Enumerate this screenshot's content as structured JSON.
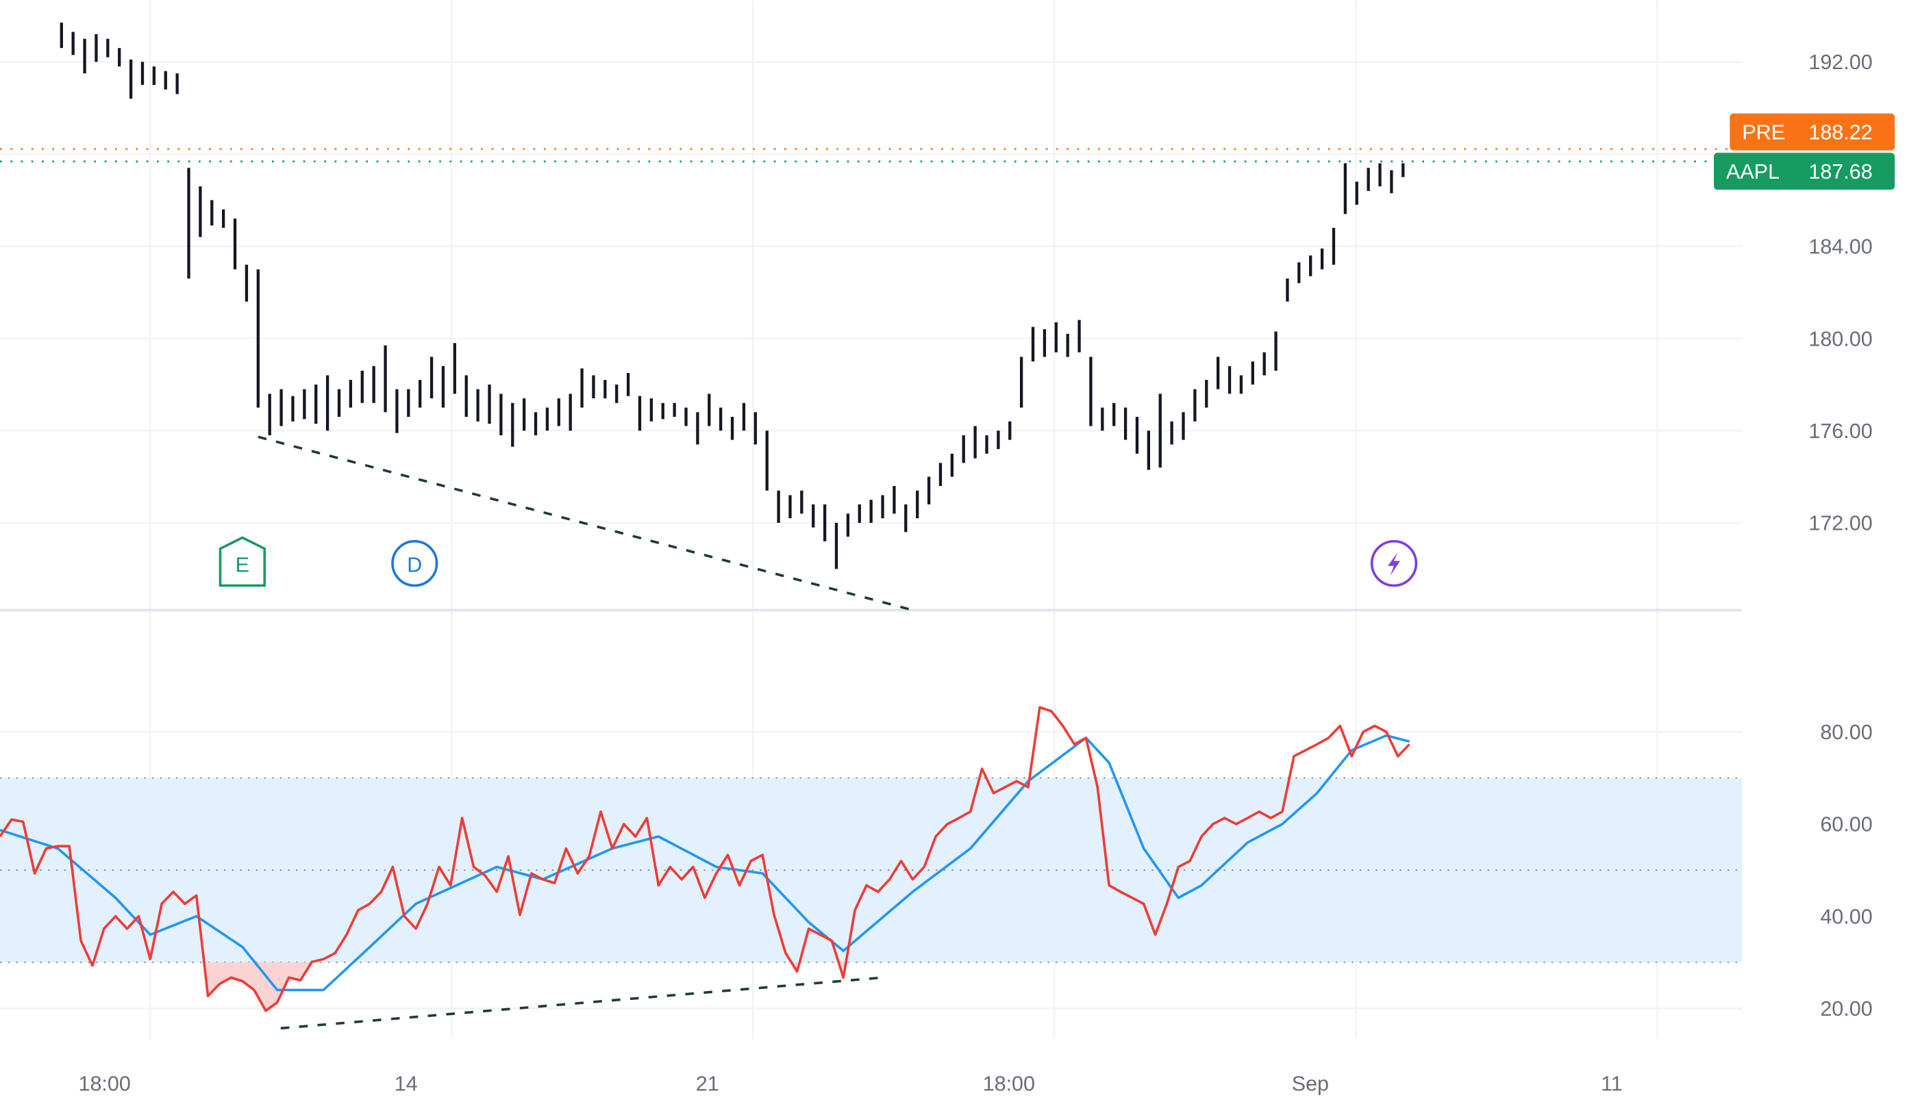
{
  "chart_data": [
    {
      "type": "ohlc-bar",
      "symbol": "AAPL",
      "price_axis": {
        "ticks": [
          "192.00",
          "184.00",
          "180.00",
          "176.00",
          "172.00"
        ],
        "tick_values": [
          192,
          184,
          180,
          176,
          172
        ],
        "ylim": [
          168.2,
          194.7
        ]
      },
      "time_axis": {
        "ticks": [
          "18:00",
          "14",
          "21",
          "18:00",
          "Sep",
          "11"
        ]
      },
      "grid": true,
      "bars_high_low": [
        [
          193.7,
          192.6
        ],
        [
          193.3,
          192.3
        ],
        [
          193.0,
          191.5
        ],
        [
          193.2,
          192.0
        ],
        [
          193.0,
          192.2
        ],
        [
          192.6,
          191.8
        ],
        [
          192.1,
          190.4
        ],
        [
          192.0,
          191.0
        ],
        [
          191.8,
          191.0
        ],
        [
          191.6,
          190.8
        ],
        [
          191.5,
          190.6
        ],
        [
          187.4,
          182.6
        ],
        [
          186.6,
          184.4
        ],
        [
          186.0,
          184.9
        ],
        [
          185.6,
          184.8
        ],
        [
          185.2,
          183.0
        ],
        [
          183.2,
          181.6
        ],
        [
          183.0,
          177.0
        ],
        [
          177.6,
          175.8
        ],
        [
          177.8,
          176.2
        ],
        [
          177.5,
          176.4
        ],
        [
          177.8,
          176.5
        ],
        [
          178.0,
          176.3
        ],
        [
          178.4,
          176.0
        ],
        [
          177.8,
          176.6
        ],
        [
          178.2,
          177.0
        ],
        [
          178.6,
          177.2
        ],
        [
          178.8,
          177.2
        ],
        [
          179.7,
          176.8
        ],
        [
          177.8,
          175.9
        ],
        [
          177.8,
          176.6
        ],
        [
          178.2,
          177.0
        ],
        [
          179.2,
          177.4
        ],
        [
          178.8,
          177.0
        ],
        [
          179.8,
          177.6
        ],
        [
          178.4,
          176.6
        ],
        [
          177.8,
          176.4
        ],
        [
          178.0,
          176.3
        ],
        [
          177.6,
          175.8
        ],
        [
          177.2,
          175.3
        ],
        [
          177.4,
          176.0
        ],
        [
          176.8,
          175.8
        ],
        [
          177.0,
          176.0
        ],
        [
          177.4,
          176.2
        ],
        [
          177.6,
          176.0
        ],
        [
          178.7,
          177.0
        ],
        [
          178.4,
          177.4
        ],
        [
          178.2,
          177.4
        ],
        [
          178.0,
          177.2
        ],
        [
          178.5,
          177.5
        ],
        [
          177.5,
          176.0
        ],
        [
          177.4,
          176.4
        ],
        [
          177.2,
          176.5
        ],
        [
          177.2,
          176.6
        ],
        [
          177.0,
          176.2
        ],
        [
          176.8,
          175.4
        ],
        [
          177.6,
          176.2
        ],
        [
          177.0,
          176.0
        ],
        [
          176.6,
          175.6
        ],
        [
          177.2,
          176.0
        ],
        [
          176.8,
          175.4
        ],
        [
          176.0,
          173.4
        ],
        [
          173.4,
          172.0
        ],
        [
          173.2,
          172.2
        ],
        [
          173.4,
          172.4
        ],
        [
          172.8,
          171.8
        ],
        [
          172.8,
          171.2
        ],
        [
          172.0,
          170.0
        ],
        [
          172.4,
          171.4
        ],
        [
          172.8,
          172.0
        ],
        [
          173.0,
          172.0
        ],
        [
          173.2,
          172.2
        ],
        [
          173.6,
          172.4
        ],
        [
          172.8,
          171.6
        ],
        [
          173.4,
          172.2
        ],
        [
          174.0,
          172.8
        ],
        [
          174.6,
          173.6
        ],
        [
          175.0,
          174.0
        ],
        [
          175.8,
          174.6
        ],
        [
          176.2,
          174.8
        ],
        [
          175.8,
          175.0
        ],
        [
          176.0,
          175.2
        ],
        [
          176.4,
          175.6
        ],
        [
          179.2,
          177.0
        ],
        [
          180.5,
          179.0
        ],
        [
          180.4,
          179.2
        ],
        [
          180.7,
          179.4
        ],
        [
          180.2,
          179.2
        ],
        [
          180.8,
          179.4
        ],
        [
          179.2,
          176.2
        ],
        [
          177.0,
          176.0
        ],
        [
          177.2,
          176.2
        ],
        [
          177.0,
          175.6
        ],
        [
          176.6,
          175.0
        ],
        [
          176.0,
          174.3
        ],
        [
          177.6,
          174.4
        ],
        [
          176.4,
          175.4
        ],
        [
          176.8,
          175.6
        ],
        [
          177.8,
          176.4
        ],
        [
          178.2,
          177.0
        ],
        [
          179.2,
          177.8
        ],
        [
          178.8,
          177.6
        ],
        [
          178.4,
          177.6
        ],
        [
          179.0,
          178.0
        ],
        [
          179.4,
          178.4
        ],
        [
          180.3,
          178.6
        ],
        [
          182.6,
          181.6
        ],
        [
          183.3,
          182.4
        ],
        [
          183.6,
          182.7
        ],
        [
          183.9,
          183.0
        ],
        [
          184.8,
          183.2
        ],
        [
          187.6,
          185.4
        ],
        [
          186.8,
          185.8
        ],
        [
          187.4,
          186.4
        ],
        [
          187.6,
          186.6
        ],
        [
          187.3,
          186.3
        ],
        [
          187.6,
          187.0
        ]
      ],
      "price_lines": [
        {
          "label": "PRE",
          "value": "188.22",
          "price": 188.22,
          "color": "#f97316"
        },
        {
          "label": "AAPL",
          "value": "187.68",
          "price": 187.68,
          "color": "#179b61"
        }
      ],
      "trendline": {
        "from": [
          17,
          175.73
        ],
        "to": [
          74,
          168.16
        ],
        "style": "dashed",
        "color": "#1f3b33"
      },
      "events": [
        {
          "type": "earnings",
          "letter": "E",
          "color": "#179b61"
        },
        {
          "type": "dividend",
          "letter": "D",
          "color": "#1e78d6"
        },
        {
          "type": "news",
          "icon": "lightning-icon",
          "color": "#7b3fe4"
        }
      ]
    },
    {
      "type": "line",
      "indicator": "RSI",
      "rsi_axis": {
        "ticks": [
          "80.00",
          "60.00",
          "40.00",
          "20.00"
        ],
        "tick_values": [
          80,
          60,
          40,
          20
        ],
        "ylim": [
          13,
          106
        ]
      },
      "bands": {
        "upper": 70,
        "middle": 50,
        "lower": 30,
        "fill": "#e3f0fd"
      },
      "series": [
        {
          "color": "#ef3b36",
          "values": [
            57.3,
            61,
            60.5,
            49.3,
            54.7,
            55.2,
            55.2,
            34.7,
            29.3,
            37.3,
            40,
            37.3,
            40,
            30.7,
            42.7,
            45.3,
            42.7,
            44.5,
            22.7,
            25.3,
            26.7,
            25.9,
            24,
            19.5,
            21.3,
            26.7,
            26.1,
            30.1,
            30.7,
            32,
            36,
            41.3,
            42.7,
            45.3,
            50.7,
            40,
            37.3,
            42.7,
            50.7,
            46.7,
            61.3,
            50.7,
            48.8,
            45.3,
            53,
            40.3,
            49.3,
            48,
            47.2,
            54.7,
            49.3,
            53,
            62.7,
            54.7,
            60,
            57.3,
            61.3,
            46.7,
            50.7,
            48,
            50.7,
            44,
            49.3,
            53.3,
            46.7,
            52,
            53.3,
            40.3,
            32,
            28,
            37.3,
            36,
            34.7,
            26.7,
            41.3,
            46.7,
            45.3,
            48,
            52,
            48,
            50.7,
            57.3,
            60,
            61.3,
            62.7,
            72,
            66.7,
            68,
            69.3,
            68,
            85.3,
            84.5,
            81.3,
            77.3,
            78.7,
            68,
            46.7,
            45.3,
            44,
            42.7,
            36,
            42.7,
            50.7,
            52,
            57.3,
            60,
            61.3,
            60,
            61.3,
            62.7,
            61.3,
            62.7,
            74.7,
            76,
            77.3,
            78.7,
            81.3,
            74.7,
            80,
            81.3,
            80,
            74.7,
            77.3
          ]
        },
        {
          "color": "#2196f3",
          "points": [
            [
              0,
              58.7
            ],
            [
              5,
              54.7
            ],
            [
              10,
              44
            ],
            [
              13,
              36
            ],
            [
              17,
              40
            ],
            [
              21,
              33.3
            ],
            [
              24,
              24
            ],
            [
              28,
              24
            ],
            [
              32,
              33.3
            ],
            [
              36,
              42.7
            ],
            [
              43,
              50.7
            ],
            [
              47,
              48
            ],
            [
              53,
              54.7
            ],
            [
              57,
              57.3
            ],
            [
              62,
              50.7
            ],
            [
              66,
              49.3
            ],
            [
              70,
              38.7
            ],
            [
              73,
              32.5
            ],
            [
              79,
              45.3
            ],
            [
              84,
              54.7
            ],
            [
              89,
              69.3
            ],
            [
              94,
              78.7
            ],
            [
              96,
              73.3
            ],
            [
              99,
              54.7
            ],
            [
              102,
              44
            ],
            [
              104,
              46.7
            ],
            [
              108,
              56
            ],
            [
              111,
              60
            ],
            [
              114,
              66.7
            ],
            [
              117,
              76
            ],
            [
              120,
              79.2
            ],
            [
              122,
              77.9
            ]
          ]
        }
      ],
      "oversold_fill": "#fbd3d3",
      "trendline": {
        "from": [
          24.3,
          15.7
        ],
        "to": [
          76.4,
          26.7
        ],
        "style": "dashed",
        "color": "#1f3b33"
      }
    }
  ]
}
